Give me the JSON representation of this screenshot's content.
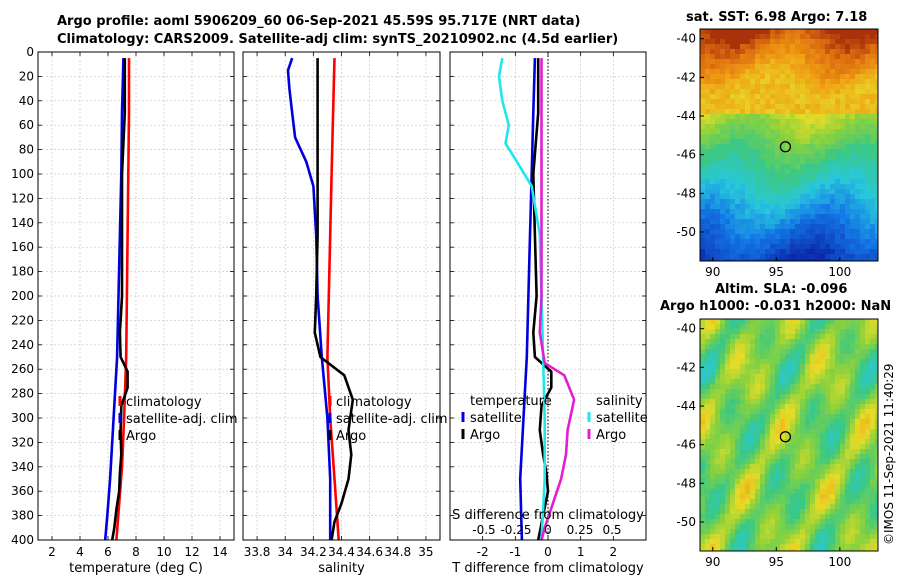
{
  "header": {
    "title_line1": "Argo profile: aoml 5906209_60 06-Sep-2021 45.59S 95.717E (NRT data)",
    "title_line2": "Climatology: CARS2009. Satellite-adj clim: synTS_20210902.nc (4.5d earlier)"
  },
  "sst_map_title": "sat. SST: 6.98 Argo: 7.18",
  "sla_map_title1": "Altim. SLA: -0.096",
  "sla_map_title2": "Argo h1000: -0.031 h2000: NaN",
  "watermark": "©IMOS 11-Sep-2021 11:40:29",
  "colors": {
    "climatology": "#ff0000",
    "satellite": "#0000dd",
    "argo": "#000000",
    "sat_salinity": "#22e5ee",
    "argo_salinity": "#e020d0"
  },
  "chart_data": [
    {
      "type": "line",
      "title": "",
      "xlabel": "temperature (deg C)",
      "ylabel": "",
      "xlim": [
        1,
        15
      ],
      "ylim": [
        400,
        0
      ],
      "xticks": [
        2,
        4,
        6,
        8,
        10,
        12,
        14
      ],
      "yticks": [
        0,
        20,
        40,
        60,
        80,
        100,
        120,
        140,
        160,
        180,
        200,
        220,
        240,
        260,
        280,
        300,
        320,
        340,
        360,
        380,
        400
      ],
      "legend": [
        "climatology",
        "satellite-adj. clim",
        "Argo"
      ],
      "series": [
        {
          "name": "climatology",
          "color": "climatology",
          "points": [
            [
              7.5,
              5
            ],
            [
              7.5,
              50
            ],
            [
              7.45,
              100
            ],
            [
              7.4,
              150
            ],
            [
              7.35,
              200
            ],
            [
              7.3,
              250
            ],
            [
              7.15,
              300
            ],
            [
              7.0,
              340
            ],
            [
              6.8,
              370
            ],
            [
              6.6,
              400
            ]
          ]
        },
        {
          "name": "satellite-adj. clim",
          "color": "satellite",
          "points": [
            [
              7.1,
              5
            ],
            [
              7.0,
              50
            ],
            [
              6.95,
              100
            ],
            [
              6.85,
              150
            ],
            [
              6.75,
              200
            ],
            [
              6.65,
              250
            ],
            [
              6.4,
              300
            ],
            [
              6.15,
              350
            ],
            [
              5.95,
              380
            ],
            [
              5.8,
              400
            ]
          ]
        },
        {
          "name": "Argo",
          "color": "argo",
          "points": [
            [
              7.2,
              5
            ],
            [
              7.2,
              50
            ],
            [
              7.0,
              100
            ],
            [
              7.0,
              150
            ],
            [
              7.0,
              200
            ],
            [
              6.85,
              230
            ],
            [
              6.9,
              250
            ],
            [
              7.4,
              262
            ],
            [
              7.4,
              275
            ],
            [
              6.95,
              290
            ],
            [
              6.9,
              310
            ],
            [
              6.95,
              330
            ],
            [
              6.85,
              345
            ],
            [
              6.8,
              360
            ],
            [
              6.6,
              375
            ],
            [
              6.45,
              390
            ],
            [
              6.3,
              400
            ]
          ]
        }
      ]
    },
    {
      "type": "line",
      "title": "",
      "xlabel": "salinity",
      "ylabel": "",
      "xlim": [
        33.7,
        35.1
      ],
      "ylim": [
        400,
        0
      ],
      "xticks": [
        33.8,
        34,
        34.2,
        34.4,
        34.6,
        34.8,
        35
      ],
      "xticklabels": [
        "33.8",
        "34",
        "34.2",
        "34.4",
        "34.6",
        "34.8",
        "35"
      ],
      "yticks": [
        0,
        20,
        40,
        60,
        80,
        100,
        120,
        140,
        160,
        180,
        200,
        220,
        240,
        260,
        280,
        300,
        320,
        340,
        360,
        380,
        400
      ],
      "legend": [
        "climatology",
        "satellite-adj. clim",
        "Argo"
      ],
      "series": [
        {
          "name": "climatology",
          "color": "climatology",
          "points": [
            [
              34.35,
              5
            ],
            [
              34.34,
              50
            ],
            [
              34.33,
              100
            ],
            [
              34.32,
              150
            ],
            [
              34.31,
              200
            ],
            [
              34.3,
              250
            ],
            [
              34.32,
              300
            ],
            [
              34.35,
              350
            ],
            [
              34.38,
              400
            ]
          ]
        },
        {
          "name": "satellite-adj. clim",
          "color": "satellite",
          "points": [
            [
              34.05,
              5
            ],
            [
              34.02,
              15
            ],
            [
              34.03,
              30
            ],
            [
              34.05,
              50
            ],
            [
              34.07,
              70
            ],
            [
              34.15,
              90
            ],
            [
              34.2,
              110
            ],
            [
              34.22,
              150
            ],
            [
              34.23,
              200
            ],
            [
              34.26,
              250
            ],
            [
              34.3,
              300
            ],
            [
              34.32,
              350
            ],
            [
              34.32,
              400
            ]
          ]
        },
        {
          "name": "Argo",
          "color": "argo",
          "points": [
            [
              34.23,
              5
            ],
            [
              34.23,
              50
            ],
            [
              34.23,
              100
            ],
            [
              34.23,
              150
            ],
            [
              34.22,
              200
            ],
            [
              34.21,
              230
            ],
            [
              34.25,
              250
            ],
            [
              34.42,
              265
            ],
            [
              34.48,
              285
            ],
            [
              34.45,
              310
            ],
            [
              34.47,
              330
            ],
            [
              34.45,
              350
            ],
            [
              34.4,
              370
            ],
            [
              34.35,
              385
            ],
            [
              34.33,
              400
            ]
          ]
        }
      ]
    },
    {
      "type": "line",
      "title": "",
      "xlabel": "T difference from climatology",
      "ylabel": "",
      "xlim": [
        -3,
        3
      ],
      "ylim": [
        400,
        0
      ],
      "xticks": [
        -2,
        -1,
        0,
        1,
        2
      ],
      "xticklabels": [
        "-2",
        "-1",
        "0",
        "1",
        "2"
      ],
      "secondary_axis": {
        "label": "S difference from climatology",
        "ticks": [
          -0.5,
          -0.25,
          0,
          0.25,
          0.5
        ],
        "ticklabels": [
          "-0.5",
          "-0.25",
          "0",
          "0.25",
          "0.5"
        ]
      },
      "yticks": [
        0,
        20,
        40,
        60,
        80,
        100,
        120,
        140,
        160,
        180,
        200,
        220,
        240,
        260,
        280,
        300,
        320,
        340,
        360,
        380,
        400
      ],
      "legend_temperature": {
        "title": "temperature",
        "items": [
          "satellite",
          "Argo"
        ]
      },
      "legend_salinity": {
        "title": "salinity",
        "items": [
          "satellite",
          "Argo"
        ]
      },
      "series": [
        {
          "name": "temperature satellite",
          "color": "satellite",
          "points": [
            [
              -0.4,
              5
            ],
            [
              -0.45,
              50
            ],
            [
              -0.5,
              100
            ],
            [
              -0.55,
              150
            ],
            [
              -0.6,
              200
            ],
            [
              -0.65,
              250
            ],
            [
              -0.75,
              300
            ],
            [
              -0.85,
              350
            ],
            [
              -0.8,
              400
            ]
          ]
        },
        {
          "name": "temperature Argo",
          "color": "argo",
          "points": [
            [
              -0.3,
              5
            ],
            [
              -0.3,
              50
            ],
            [
              -0.45,
              100
            ],
            [
              -0.4,
              150
            ],
            [
              -0.35,
              200
            ],
            [
              -0.45,
              230
            ],
            [
              -0.4,
              250
            ],
            [
              0.1,
              262
            ],
            [
              0.1,
              275
            ],
            [
              -0.2,
              290
            ],
            [
              -0.25,
              310
            ],
            [
              -0.15,
              330
            ],
            [
              -0.05,
              345
            ],
            [
              0.0,
              360
            ],
            [
              -0.15,
              380
            ],
            [
              -0.3,
              400
            ]
          ]
        },
        {
          "name": "salinity satellite",
          "color": "sat_salinity",
          "points": [
            [
              -1.4,
              5
            ],
            [
              -1.5,
              20
            ],
            [
              -1.4,
              40
            ],
            [
              -1.2,
              60
            ],
            [
              -1.3,
              75
            ],
            [
              -0.95,
              90
            ],
            [
              -0.5,
              110
            ],
            [
              -0.25,
              150
            ],
            [
              -0.2,
              200
            ],
            [
              -0.15,
              250
            ],
            [
              -0.1,
              300
            ],
            [
              -0.1,
              350
            ],
            [
              -0.2,
              400
            ]
          ]
        },
        {
          "name": "salinity Argo",
          "color": "argo_salinity",
          "points": [
            [
              -0.2,
              5
            ],
            [
              -0.2,
              50
            ],
            [
              -0.2,
              100
            ],
            [
              -0.2,
              150
            ],
            [
              -0.2,
              200
            ],
            [
              -0.25,
              230
            ],
            [
              -0.1,
              255
            ],
            [
              0.5,
              265
            ],
            [
              0.8,
              285
            ],
            [
              0.6,
              310
            ],
            [
              0.55,
              330
            ],
            [
              0.4,
              350
            ],
            [
              0.15,
              370
            ],
            [
              -0.1,
              390
            ],
            [
              -0.2,
              400
            ]
          ]
        }
      ]
    },
    {
      "type": "heatmap",
      "title": "sat. SST: 6.98 Argo: 7.18",
      "xlim": [
        89,
        103
      ],
      "ylim": [
        -51.5,
        -39.5
      ],
      "xticks": [
        90,
        95,
        100
      ],
      "yticks": [
        -40,
        -42,
        -44,
        -46,
        -48,
        -50
      ],
      "marker": {
        "lon": 95.717,
        "lat": -45.59
      }
    },
    {
      "type": "heatmap",
      "title": "Altim. SLA: -0.096",
      "xlim": [
        89,
        103
      ],
      "ylim": [
        -51.5,
        -39.5
      ],
      "xticks": [
        90,
        95,
        100
      ],
      "yticks": [
        -40,
        -42,
        -44,
        -46,
        -48,
        -50
      ],
      "marker": {
        "lon": 95.717,
        "lat": -45.59
      }
    }
  ]
}
